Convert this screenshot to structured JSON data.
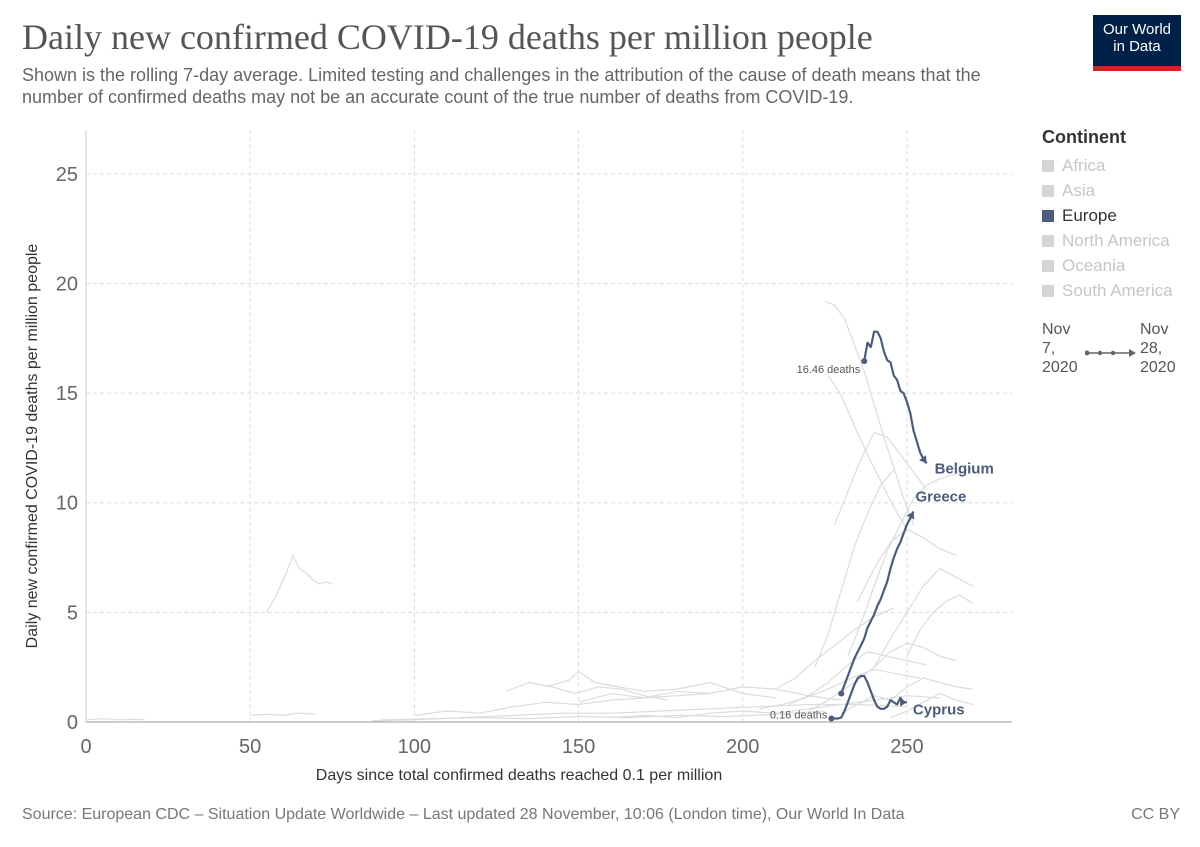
{
  "header": {
    "title": "Daily new confirmed COVID-19 deaths per million people",
    "subtitle": "Shown is the rolling 7-day average. Limited testing and challenges in the attribution of the cause of death means that the number of confirmed deaths may not be an accurate count of the true number of deaths from COVID-19.",
    "logo_line1": "Our World",
    "logo_line2": "in Data"
  },
  "legend": {
    "title": "Continent",
    "items": [
      {
        "label": "Africa",
        "active": false
      },
      {
        "label": "Asia",
        "active": false
      },
      {
        "label": "Europe",
        "active": true
      },
      {
        "label": "North America",
        "active": false
      },
      {
        "label": "Oceania",
        "active": false
      },
      {
        "label": "South America",
        "active": false
      }
    ]
  },
  "timeline": {
    "start": "Nov\n7,\n2020",
    "start_lines": [
      "Nov",
      "7,",
      "2020"
    ],
    "end_lines": [
      "Nov",
      "28,",
      "2020"
    ]
  },
  "footer": {
    "source": "Source: European CDC – Situation Update Worldwide – Last updated 28 November, 10:06 (London time), Our World In Data",
    "license": "CC BY"
  },
  "colors": {
    "highlight": "#4c5c7e",
    "background_lines": "#dcdcdc",
    "grid": "#dddddd"
  },
  "chart_data": {
    "type": "line",
    "xlabel": "Days since total confirmed deaths reached 0.1 per million",
    "ylabel": "Daily new confirmed COVID-19 deaths per million people",
    "xlim": [
      0,
      282
    ],
    "ylim": [
      0,
      27
    ],
    "xticks": [
      0,
      50,
      100,
      150,
      200,
      250
    ],
    "yticks": [
      0,
      5,
      10,
      15,
      20,
      25
    ],
    "grid": true,
    "series": [
      {
        "name": "Belgium",
        "highlight": true,
        "start_label": "16.46 deaths",
        "x": [
          237,
          238,
          239,
          240,
          241,
          242,
          243,
          244,
          245,
          246,
          247,
          248,
          249,
          250,
          251,
          252,
          253,
          254,
          255,
          256
        ],
        "y": [
          16.46,
          17.3,
          17.1,
          17.8,
          17.8,
          17.5,
          16.9,
          16.5,
          16.4,
          15.8,
          15.6,
          15.1,
          15.0,
          14.6,
          14.1,
          13.3,
          12.8,
          12.3,
          12.0,
          11.8
        ]
      },
      {
        "name": "Greece",
        "highlight": true,
        "x": [
          230,
          231,
          232,
          233,
          234,
          235,
          236,
          237,
          238,
          239,
          240,
          241,
          242,
          243,
          244,
          245,
          246,
          247,
          248,
          249,
          250,
          251,
          252
        ],
        "y": [
          1.3,
          1.7,
          2.1,
          2.5,
          2.9,
          3.2,
          3.5,
          3.8,
          4.3,
          4.6,
          4.9,
          5.3,
          5.6,
          6.0,
          6.4,
          7.0,
          7.5,
          7.9,
          8.2,
          8.6,
          9.0,
          9.3,
          9.6
        ]
      },
      {
        "name": "Cyprus",
        "highlight": true,
        "start_label": "0.16 deaths",
        "x": [
          227,
          228,
          229,
          230,
          231,
          232,
          233,
          234,
          235,
          236,
          237,
          238,
          239,
          240,
          241,
          242,
          243,
          244,
          245,
          246,
          247,
          248,
          249,
          250
        ],
        "y": [
          0.16,
          0.16,
          0.16,
          0.2,
          0.5,
          0.9,
          1.3,
          1.7,
          2.0,
          2.1,
          2.1,
          1.8,
          1.4,
          1.0,
          0.7,
          0.6,
          0.6,
          0.7,
          1.0,
          0.9,
          0.8,
          1.1,
          0.9,
          0.9
        ]
      },
      {
        "name": "",
        "highlight": false,
        "x": [
          225,
          228,
          231,
          234,
          237,
          240,
          243,
          246,
          249,
          252
        ],
        "y": [
          19.2,
          19.0,
          18.4,
          17.2,
          16.0,
          14.5,
          13.0,
          11.6,
          10.2,
          9.0
        ]
      },
      {
        "name": "",
        "highlight": false,
        "x": [
          226,
          230,
          234,
          238,
          242,
          246,
          250
        ],
        "y": [
          15.8,
          14.9,
          13.5,
          12.2,
          11.0,
          9.8,
          8.8
        ]
      },
      {
        "name": "",
        "highlight": false,
        "x": [
          228,
          232,
          236,
          240,
          244,
          248,
          252,
          256
        ],
        "y": [
          9.0,
          10.5,
          12.0,
          13.2,
          13.0,
          12.2,
          11.4,
          10.6
        ]
      },
      {
        "name": "",
        "highlight": false,
        "x": [
          232,
          236,
          240,
          244,
          248,
          252,
          256,
          260,
          265,
          270
        ],
        "y": [
          3.0,
          4.5,
          6.2,
          7.8,
          9.0,
          10.2,
          10.8,
          11.1,
          11.3,
          11.6
        ]
      },
      {
        "name": "",
        "highlight": false,
        "x": [
          222,
          226,
          230,
          234,
          238,
          242,
          246
        ],
        "y": [
          2.5,
          4.0,
          6.0,
          8.0,
          9.5,
          10.8,
          11.5
        ]
      },
      {
        "name": "",
        "highlight": false,
        "x": [
          235,
          240,
          245,
          250,
          255,
          260,
          265
        ],
        "y": [
          5.5,
          7.0,
          8.2,
          8.8,
          8.4,
          7.9,
          7.6
        ]
      },
      {
        "name": "",
        "highlight": false,
        "x": [
          240,
          245,
          250,
          255,
          260,
          265,
          270
        ],
        "y": [
          2.5,
          3.8,
          5.0,
          6.2,
          7.0,
          6.6,
          6.2
        ]
      },
      {
        "name": "",
        "highlight": false,
        "x": [
          250,
          254,
          258,
          262,
          266,
          270
        ],
        "y": [
          3.0,
          4.2,
          5.0,
          5.5,
          5.8,
          5.4
        ]
      },
      {
        "name": "",
        "highlight": false,
        "x": [
          210,
          216,
          222,
          228,
          234,
          240,
          246
        ],
        "y": [
          1.5,
          2.0,
          2.8,
          3.5,
          4.2,
          4.8,
          5.2
        ]
      },
      {
        "name": "",
        "highlight": false,
        "x": [
          214,
          220,
          226,
          232,
          238,
          244,
          250,
          256
        ],
        "y": [
          0.8,
          1.2,
          1.8,
          2.6,
          3.2,
          3.0,
          2.8,
          2.6
        ]
      },
      {
        "name": "",
        "highlight": false,
        "x": [
          205,
          212,
          219,
          226,
          233,
          240,
          247,
          254
        ],
        "y": [
          0.6,
          0.8,
          1.1,
          1.5,
          2.0,
          2.4,
          2.2,
          2.0
        ]
      },
      {
        "name": "",
        "highlight": false,
        "x": [
          220,
          225,
          230,
          235,
          240,
          245,
          250,
          255,
          260,
          265
        ],
        "y": [
          0.5,
          0.9,
          1.4,
          1.9,
          2.5,
          3.2,
          3.6,
          3.4,
          3.0,
          2.8
        ]
      },
      {
        "name": "",
        "highlight": false,
        "x": [
          55,
          58,
          61,
          63,
          65,
          67,
          69,
          71,
          73,
          75
        ],
        "y": [
          5.0,
          5.8,
          6.8,
          7.6,
          7.0,
          6.8,
          6.5,
          6.3,
          6.4,
          6.3
        ]
      },
      {
        "name": "",
        "highlight": false,
        "x": [
          0,
          5,
          10,
          15,
          18
        ],
        "y": [
          0.1,
          0.15,
          0.1,
          0.12,
          0.1
        ]
      },
      {
        "name": "",
        "highlight": false,
        "x": [
          50,
          55,
          60,
          65,
          70
        ],
        "y": [
          0.3,
          0.35,
          0.3,
          0.4,
          0.35
        ]
      },
      {
        "name": "",
        "highlight": false,
        "x": [
          87,
          100,
          115,
          130,
          145,
          160,
          175,
          190,
          205,
          220,
          235,
          250
        ],
        "y": [
          0.05,
          0.1,
          0.2,
          0.3,
          0.4,
          0.4,
          0.5,
          0.6,
          0.7,
          0.8,
          0.8,
          0.7
        ]
      },
      {
        "name": "",
        "highlight": false,
        "x": [
          100,
          110,
          120,
          130,
          140,
          150,
          160,
          170,
          180,
          190
        ],
        "y": [
          0.3,
          0.5,
          0.4,
          0.7,
          0.9,
          0.8,
          1.0,
          1.1,
          1.2,
          1.3
        ]
      },
      {
        "name": "",
        "highlight": false,
        "x": [
          128,
          135,
          142,
          149,
          156,
          163,
          170,
          177
        ],
        "y": [
          1.4,
          1.8,
          1.6,
          1.3,
          1.6,
          1.5,
          1.2,
          1.0
        ]
      },
      {
        "name": "",
        "highlight": false,
        "x": [
          140,
          147,
          150,
          155,
          162,
          170,
          180,
          190,
          200,
          210
        ],
        "y": [
          1.6,
          1.9,
          2.3,
          1.8,
          1.6,
          1.4,
          1.5,
          1.8,
          1.3,
          1.1
        ]
      },
      {
        "name": "",
        "highlight": false,
        "x": [
          150,
          160,
          170,
          180,
          190,
          200,
          210,
          220,
          230
        ],
        "y": [
          0.9,
          1.3,
          1.1,
          1.4,
          1.3,
          1.6,
          1.5,
          1.2,
          1.0
        ]
      },
      {
        "name": "",
        "highlight": false,
        "x": [
          160,
          170,
          180,
          190,
          200,
          210,
          220,
          230,
          240,
          250,
          260
        ],
        "y": [
          0.2,
          0.3,
          0.2,
          0.4,
          0.5,
          0.4,
          0.6,
          0.8,
          1.0,
          1.2,
          1.1
        ]
      },
      {
        "name": "",
        "highlight": false,
        "x": [
          90,
          105,
          120,
          135,
          150,
          165,
          180,
          195,
          210,
          225
        ],
        "y": [
          0.1,
          0.15,
          0.2,
          0.15,
          0.25,
          0.2,
          0.3,
          0.25,
          0.35,
          0.5
        ]
      },
      {
        "name": "",
        "highlight": false,
        "x": [
          230,
          235,
          240,
          245,
          250,
          255,
          260,
          265,
          270
        ],
        "y": [
          0.4,
          0.8,
          1.2,
          1.0,
          1.6,
          2.0,
          1.8,
          1.6,
          1.5
        ]
      },
      {
        "name": "",
        "highlight": false,
        "x": [
          245,
          250,
          255,
          260,
          265,
          270
        ],
        "y": [
          0.2,
          0.5,
          0.9,
          1.3,
          1.0,
          0.8
        ]
      }
    ]
  }
}
